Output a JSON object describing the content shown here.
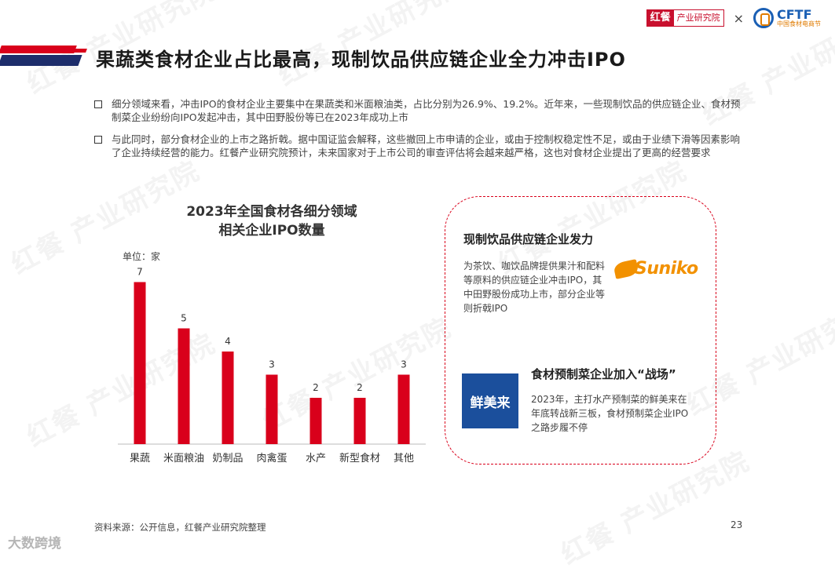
{
  "header": {
    "logo_hongcan_mark": "红餐",
    "logo_hongcan_text": "产业研究院",
    "times": "×",
    "logo_cftf": "CFTF",
    "logo_cftf_sub": "中国食材电商节"
  },
  "title": "果蔬类食材企业占比最高，现制饮品供应链企业全力冲击IPO",
  "bullets": [
    "细分领域来看，冲击IPO的食材企业主要集中在果蔬类和米面粮油类，占比分别为26.9%、19.2%。近年来，一些现制饮品的供应链企业、食材预制菜企业纷纷向IPO发起冲击，其中田野股份等已在2023年成功上市",
    "与此同时，部分食材企业的上市之路折戟。据中国证监会解释，这些撤回上市申请的企业，或由于控制权稳定性不足，或由于业绩下滑等因素影响了企业持续经营的能力。红餐产业研究院预计，未来国家对于上市公司的审查评估将会越来越严格，这也对食材企业提出了更高的经营要求"
  ],
  "chart_data": {
    "type": "bar",
    "title_line1": "2023年全国食材各细分领域",
    "title_line2": "相关企业IPO数量",
    "unit": "单位：家",
    "categories": [
      "果蔬",
      "米面粮油",
      "奶制品",
      "肉禽蛋",
      "水产",
      "新型食材",
      "其他"
    ],
    "values": [
      7,
      5,
      4,
      3,
      2,
      2,
      3
    ],
    "ylim": [
      0,
      8
    ],
    "bar_color": "#d9001b",
    "grid": false
  },
  "panel": {
    "heading1": "现制饮品供应链企业发力",
    "text1": "为茶饮、咖饮品牌提供果汁和配料等原料的供应链企业冲击IPO，其中田野股份成功上市，部分企业等则折戟IPO",
    "logo1": "Suniko",
    "logo2": "鲜美来",
    "heading2": "食材预制菜企业加入“战场”",
    "text2": "2023年，主打水产预制菜的鲜美来在年底转战新三板，食材预制菜企业IPO之路步履不停"
  },
  "footer": {
    "source": "资料来源：公开信息，红餐产业研究院整理",
    "page": "23",
    "watermark_text": "红餐 产业研究院",
    "bottom_mark": "大数跨境"
  },
  "colors": {
    "accent_red": "#d9001b",
    "navy": "#1d2d6b"
  }
}
